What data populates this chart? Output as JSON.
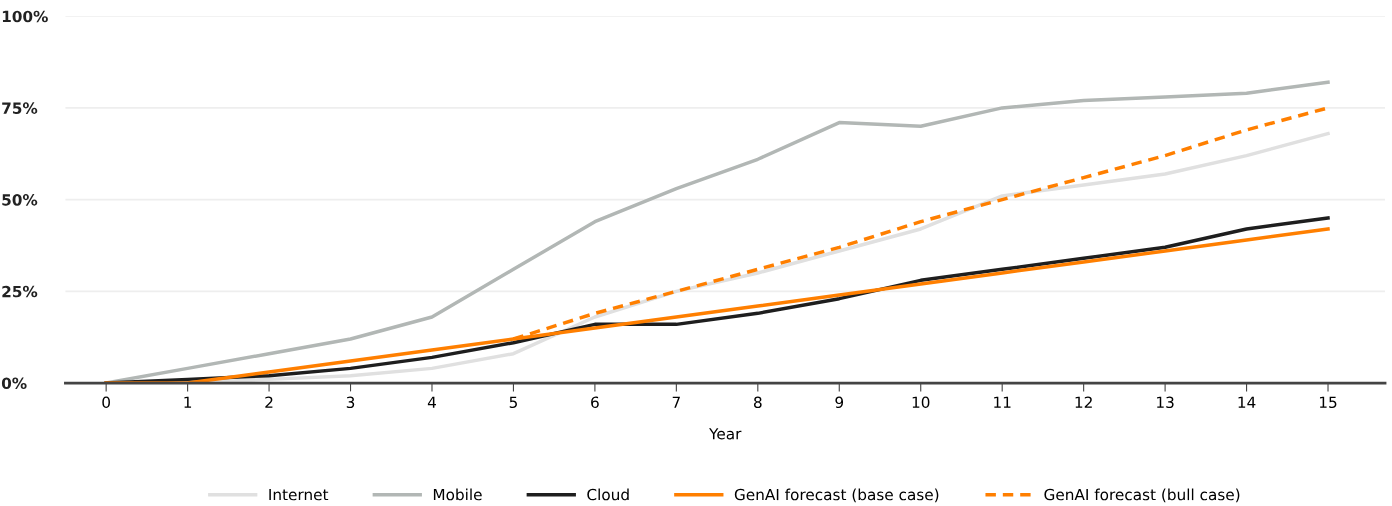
{
  "chart_data": {
    "type": "line",
    "xlabel": "Year",
    "categories": [
      "0",
      "1",
      "2",
      "3",
      "4",
      "5",
      "6",
      "7",
      "8",
      "9",
      "10",
      "11",
      "12",
      "13",
      "14",
      "15"
    ],
    "ylim": [
      0,
      100
    ],
    "yticks": [
      {
        "value": 0,
        "label": "0%"
      },
      {
        "value": 25,
        "label": "25%"
      },
      {
        "value": 50,
        "label": "50%"
      },
      {
        "value": 75,
        "label": "75%"
      },
      {
        "value": 100,
        "label": "100%"
      }
    ],
    "grid": "y",
    "legend": "bottom",
    "marker": "none",
    "series": [
      {
        "name": "Internet",
        "color": "#e0e0e0",
        "line_style": "solid",
        "values": [
          0,
          0,
          1,
          2,
          4,
          8,
          18,
          25,
          30,
          36,
          42,
          51,
          54,
          57,
          62,
          68
        ]
      },
      {
        "name": "Mobile",
        "color": "#b2b7b5",
        "line_style": "solid",
        "values": [
          0,
          4,
          8,
          12,
          18,
          31,
          44,
          53,
          61,
          71,
          70,
          75,
          77,
          78,
          79,
          82
        ]
      },
      {
        "name": "Cloud",
        "color": "#1e1e1e",
        "line_style": "solid",
        "values": [
          0,
          1,
          2,
          4,
          7,
          11,
          16,
          16,
          19,
          23,
          28,
          31,
          34,
          37,
          42,
          45
        ]
      },
      {
        "name": "GenAI forecast (base case)",
        "color": "#ff7f00",
        "line_style": "solid",
        "values": [
          0,
          0,
          3,
          6,
          9,
          12,
          15,
          18,
          21,
          24,
          27,
          30,
          33,
          36,
          39,
          42
        ]
      },
      {
        "name": "GenAI forecast (bull case)",
        "color": "#ff7f00",
        "line_style": "dashed",
        "values": [
          null,
          null,
          null,
          null,
          null,
          12,
          19,
          25,
          31,
          37,
          44,
          50,
          56,
          62,
          69,
          75
        ]
      }
    ]
  }
}
